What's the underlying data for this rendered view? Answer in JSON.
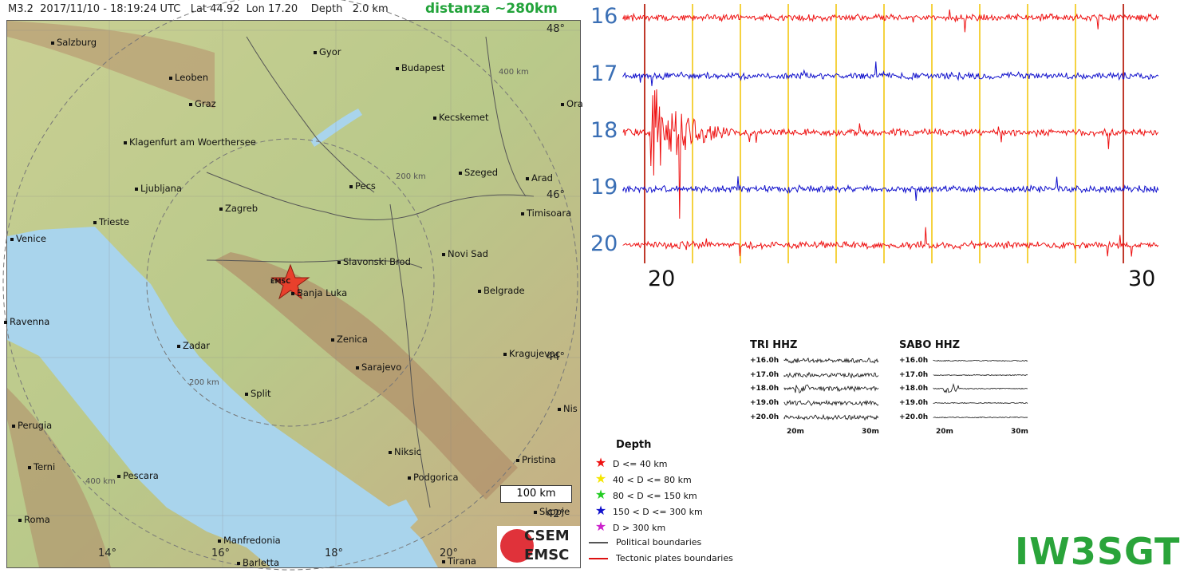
{
  "header": {
    "event": "M3.2  2017/11/10 - 18:19:24 UTC   Lat 44.92  Lon 17.20    Depth   2.0 km",
    "distance": "distanza ~280km"
  },
  "map": {
    "cities": [
      "Salzburg",
      "Gyor",
      "Budapest",
      "Leoben",
      "Graz",
      "Kecskemet",
      "Klagenfurt am Woerthersee",
      "Szeged",
      "Arad",
      "Ljubljana",
      "Pecs",
      "Zagreb",
      "Timisoara",
      "Trieste",
      "Venice",
      "Slavonski Brod",
      "Novi Sad",
      "Banja Luka",
      "Belgrade",
      "Ravenna",
      "Zenica",
      "Zadar",
      "Kragujevac",
      "Sarajevo",
      "Split",
      "Perugia",
      "Nis",
      "Niksic",
      "Terni",
      "Pristina",
      "Pescara",
      "Podgorica",
      "Roma",
      "Skopje",
      "Manfredonia",
      "Barletta",
      "Tirana",
      "Ora"
    ],
    "lat_labels": [
      "48°",
      "46°",
      "44°",
      "42°"
    ],
    "lon_labels": [
      "14°",
      "16°",
      "18°",
      "20°"
    ],
    "ring_labels": [
      "400 km",
      "200 km",
      "200 km",
      "400 km"
    ],
    "epicenter_label": "EMSC",
    "scale_bar": "100 km",
    "logo": {
      "line1": "CSEM",
      "line2": "EMSC"
    }
  },
  "seismogram": {
    "hour_labels": [
      "16",
      "17",
      "18",
      "19",
      "20"
    ],
    "trace_colors": [
      "#ee1111",
      "#1111cc",
      "#ee1111",
      "#1111cc",
      "#ee1111"
    ],
    "minute_labels": [
      "20",
      "30"
    ],
    "grid_color": "#f2c400"
  },
  "mini_plots": [
    {
      "title": "TRI HHZ",
      "rows": [
        "+16.0h",
        "+17.0h",
        "+18.0h",
        "+19.0h",
        "+20.0h"
      ],
      "x_labels": [
        "20m",
        "30m"
      ]
    },
    {
      "title": "SABO HHZ",
      "rows": [
        "+16.0h",
        "+17.0h",
        "+18.0h",
        "+19.0h",
        "+20.0h"
      ],
      "x_labels": [
        "20m",
        "30m"
      ]
    }
  ],
  "legend": {
    "title": "Depth",
    "items": [
      {
        "label": "D <= 40 km",
        "color": "#ee1111"
      },
      {
        "label": "40 < D <= 80 km",
        "color": "#f5e600"
      },
      {
        "label": "80 < D <= 150 km",
        "color": "#22cc22"
      },
      {
        "label": "150 < D <= 300 km",
        "color": "#1111cc"
      },
      {
        "label": "D > 300 km",
        "color": "#cc22cc"
      }
    ],
    "lines": [
      {
        "label": "Political boundaries",
        "color": "#555555"
      },
      {
        "label": "Tectonic plates boundaries",
        "color": "#dd1111"
      }
    ]
  },
  "callsign": "IW3SGT"
}
